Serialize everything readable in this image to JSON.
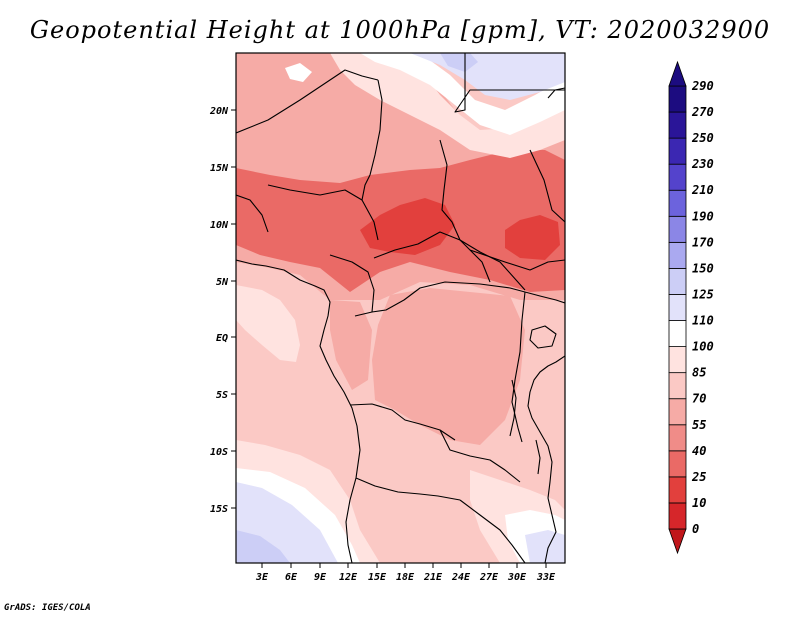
{
  "title": "Geopotential Height at 1000hPa [gpm], VT: 2020032900",
  "credit": "GrADS: IGES/COLA",
  "map": {
    "variable": "Geopotential Height",
    "level": "1000hPa",
    "units": "gpm",
    "valid_time": "2020032900",
    "lon_ticks": [
      "3E",
      "6E",
      "9E",
      "12E",
      "15E",
      "18E",
      "21E",
      "24E",
      "27E",
      "30E",
      "33E"
    ],
    "lat_ticks": [
      "20N",
      "15N",
      "10N",
      "5N",
      "EQ",
      "5S",
      "10S",
      "15S"
    ]
  },
  "colorbar": {
    "levels": [
      "0",
      "10",
      "25",
      "40",
      "55",
      "70",
      "85",
      "100",
      "110",
      "125",
      "150",
      "170",
      "190",
      "210",
      "230",
      "250",
      "270",
      "290"
    ],
    "colors": [
      "#c0161b",
      "#d6262a",
      "#e2403d",
      "#ea6a66",
      "#f08c88",
      "#f6aba6",
      "#fbc9c5",
      "#ffe3e0",
      "#ffffff",
      "#e2e2fa",
      "#cccef6",
      "#aaa9f0",
      "#8b86e6",
      "#6c63dd",
      "#5443cc",
      "#3b27b2",
      "#2a1598",
      "#1c0c80",
      "#1c0c80"
    ]
  },
  "colors": {
    "deep_red": "#e2403d",
    "mid_red": "#ea6a66",
    "light_red": "#f6aba6",
    "pale_red": "#fbc9c5",
    "pink": "#ffe3e0",
    "white": "#ffffff",
    "lavender": "#e2e2fa",
    "light_blue": "#cccef6",
    "violet": "#aaa9f0"
  }
}
